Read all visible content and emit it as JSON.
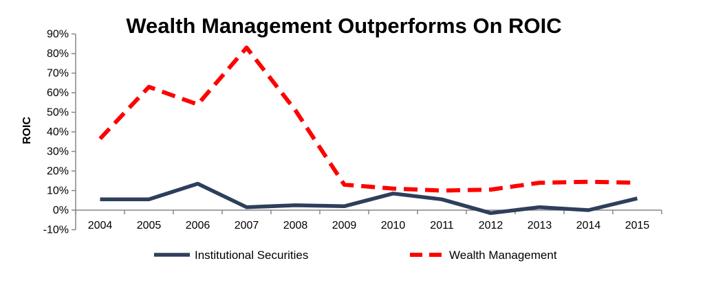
{
  "chart_data": {
    "type": "line",
    "title": "Wealth Management Outperforms On ROIC",
    "xlabel": "",
    "ylabel": "ROIC",
    "categories": [
      "2004",
      "2005",
      "2006",
      "2007",
      "2008",
      "2009",
      "2010",
      "2011",
      "2012",
      "2013",
      "2014",
      "2015"
    ],
    "ylim": [
      -10,
      90
    ],
    "yticks": [
      -10,
      0,
      10,
      20,
      30,
      40,
      50,
      60,
      70,
      80,
      90
    ],
    "ytick_labels": [
      "-10%",
      "0%",
      "10%",
      "20%",
      "30%",
      "40%",
      "50%",
      "60%",
      "70%",
      "80%",
      "90%"
    ],
    "grid": false,
    "legend_position": "bottom",
    "series": [
      {
        "name": "Institutional Securities",
        "values": [
          5.5,
          5.5,
          13.5,
          1.5,
          2.5,
          2,
          8.5,
          5.5,
          -1.5,
          1.5,
          0,
          6
        ],
        "color": "#2E3F5C",
        "style": "solid"
      },
      {
        "name": "Wealth Management",
        "values": [
          36.5,
          63,
          54,
          83,
          51,
          13,
          11,
          10,
          10.5,
          14,
          14.5,
          14
        ],
        "color": "#FF0000",
        "style": "dashed"
      }
    ]
  }
}
